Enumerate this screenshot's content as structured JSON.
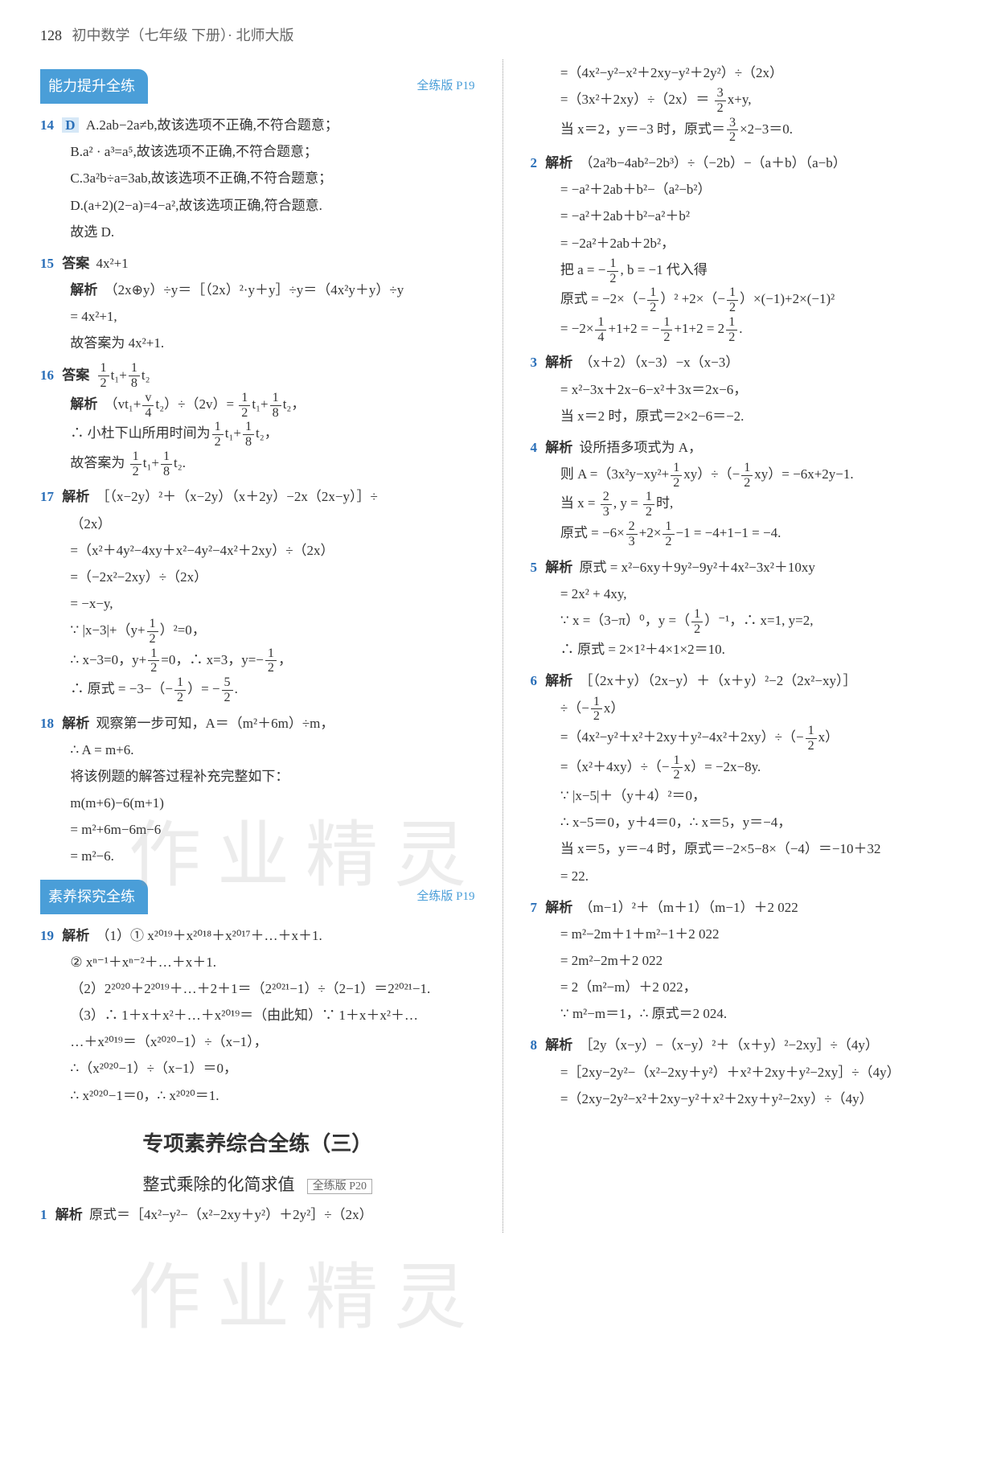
{
  "header": {
    "page_num": "128",
    "title": "初中数学（七年级 下册）· 北师大版"
  },
  "watermark": "作业精灵",
  "section1": {
    "tab": "能力提升全练",
    "ref": "全练版 P19"
  },
  "section2": {
    "tab": "素养探究全练",
    "ref": "全练版 P19"
  },
  "big_title": "专项素养综合全练（三）",
  "sub_title": "整式乘除的化简求值",
  "sub_ref": "全练版 P20",
  "left": {
    "q14": {
      "num": "14",
      "ans": "D",
      "a": "A.2ab−2a≠b,故该选项不正确,不符合题意；",
      "b": "B.a² · a³=a⁵,故该选项不正确,不符合题意；",
      "c": "C.3a²b÷a=3ab,故该选项不正确,不符合题意；",
      "d": "D.(a+2)(2−a)=4−a²,故该选项正确,符合题意.",
      "end": "故选 D."
    },
    "q15": {
      "num": "15",
      "label": "答案",
      "ans": "4x²+1",
      "jx": "解析",
      "l1": "（2x⊕y）÷y＝［（2x）²·y＋y］÷y＝（4x²y＋y）÷y",
      "l2": "= 4x²+1,",
      "l3": "故答案为 4x²+1."
    },
    "q16": {
      "num": "16",
      "label": "答案",
      "jx": "解析",
      "l3": "故答案为"
    },
    "q17": {
      "num": "17",
      "label": "解析",
      "l0": "［（x−2y）²＋（x−2y）（x＋2y）−2x（2x−y）］÷",
      "l0b": "（2x）",
      "l1": "=（x²＋4y²−4xy＋x²−4y²−4x²＋2xy）÷（2x）",
      "l2": "=（−2x²−2xy）÷（2x）",
      "l3": "= −x−y,",
      "l7": "∴ 原式 = −3−"
    },
    "q18": {
      "num": "18",
      "label": "解析",
      "l1": "观察第一步可知，A＝（m²＋6m）÷m，",
      "l2": "∴ A = m+6.",
      "l3": "将该例题的解答过程补充完整如下：",
      "l4": "m(m+6)−6(m+1)",
      "l5": "= m²+6m−6m−6",
      "l6": "= m²−6."
    },
    "q19": {
      "num": "19",
      "label": "解析",
      "l1": "（1）① x²⁰¹⁹＋x²⁰¹⁸＋x²⁰¹⁷＋…＋x＋1.",
      "l2": "② xⁿ⁻¹＋xⁿ⁻²＋…＋x＋1.",
      "l3": "（2）2²⁰²⁰＋2²⁰¹⁹＋…＋2＋1＝（2²⁰²¹−1）÷（2−1）＝2²⁰²¹−1.",
      "l4": "（3）∴ 1＋x＋x²＋…＋x²⁰¹⁹＝（由此知）∵ 1＋x＋x²＋…",
      "l5": "…＋x²⁰¹⁹＝（x²⁰²⁰−1）÷（x−1），",
      "l6": "∴（x²⁰²⁰−1）÷（x−1）＝0，",
      "l7": "∴ x²⁰²⁰−1＝0，∴ x²⁰²⁰＝1."
    },
    "q1b": {
      "num": "1",
      "label": "解析",
      "l1": "原式＝［4x²−y²−（x²−2xy＋y²）＋2y²］÷（2x）"
    }
  },
  "right": {
    "r0": {
      "l1": "=（4x²−y²−x²＋2xy−y²＋2y²）÷（2x）",
      "l2": "=（3x²＋2xy）÷（2x）＝",
      "l2b": "x+y,",
      "l3": "当 x＝2，y＝−3 时，原式＝",
      "l3b": "×2−3＝0."
    },
    "q2": {
      "num": "2",
      "label": "解析",
      "l1": "（2a²b−4ab²−2b³）÷（−2b）−（a＋b）（a−b）",
      "l2": "= −a²＋2ab＋b²−（a²−b²）",
      "l3": "= −a²＋2ab＋b²−a²＋b²",
      "l4": "= −2a²＋2ab＋2b²，",
      "l5": "把 a = −",
      "l5b": ", b = −1 代入得",
      "l6": "原式 = −2×",
      "l6c": " +2×",
      "l6d": "×(−1)+2×(−1)²",
      "l7": "= −2×",
      "l7b": "+1+2 = −",
      "l7c": "+1+2 = 2"
    },
    "q3": {
      "num": "3",
      "label": "解析",
      "l1": "（x＋2）（x−3）−x（x−3）",
      "l2": "= x²−3x＋2x−6−x²＋3x＝2x−6，",
      "l3": "当 x＝2 时，原式＝2×2−6＝−2."
    },
    "q4": {
      "num": "4",
      "label": "解析",
      "l1": "设所捂多项式为 A，",
      "l2a": "则 A =",
      "l2b": "= −6x+2y−1.",
      "l3": "当 x =",
      "l3b": ", y =",
      "l3c": "时,",
      "l4": "原式 = −6×",
      "l4b": "+2×",
      "l4c": "−1 = −4+1−1 = −4."
    },
    "q5": {
      "num": "5",
      "label": "解析",
      "l1": "原式 = x²−6xy＋9y²−9y²＋4x²−3x²＋10xy",
      "l2": "= 2x² + 4xy,",
      "l3a": "∵ x =（3−π）⁰，y =",
      "l3b": "，∴ x=1, y=2,",
      "l4": "∴ 原式 = 2×1²＋4×1×2＝10."
    },
    "q6": {
      "num": "6",
      "label": "解析",
      "l1": "［（2x＋y）（2x−y）＋（x＋y）²−2（2x²−xy）］",
      "l2a": "÷",
      "l3": "=（4x²−y²＋x²＋2xy＋y²−4x²＋2xy）÷",
      "l4": "=（x²＋4xy）÷",
      "l4b": "= −2x−8y.",
      "l5": "∵ |x−5|＋（y＋4）²＝0，",
      "l6": "∴ x−5＝0，y＋4＝0，∴ x＝5，y＝−4，",
      "l7": "当 x＝5，y＝−4 时，原式＝−2×5−8×（−4）＝−10＋32",
      "l8": "= 22."
    },
    "q7": {
      "num": "7",
      "label": "解析",
      "l1": "（m−1）²＋（m＋1）（m−1）＋2 022",
      "l2": "= m²−2m＋1＋m²−1＋2 022",
      "l3": "= 2m²−2m＋2 022",
      "l4": "= 2（m²−m）＋2 022，",
      "l5": "∵ m²−m＝1，∴ 原式＝2 024."
    },
    "q8": {
      "num": "8",
      "label": "解析",
      "l1": "［2y（x−y）−（x−y）²＋（x＋y）²−2xy］÷（4y）",
      "l2": "=［2xy−2y²−（x²−2xy＋y²）＋x²＋2xy＋y²−2xy］÷（4y）",
      "l3": "=（2xy−2y²−x²＋2xy−y²＋x²＋2xy＋y²−2xy）÷（4y）"
    }
  }
}
